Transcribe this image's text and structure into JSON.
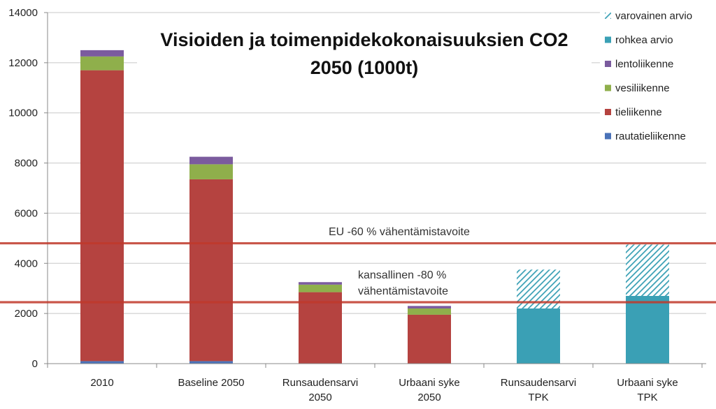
{
  "chart_data": {
    "type": "bar",
    "stacked": true,
    "title_lines": [
      "Visioiden ja toimenpidekokonaisuuksien CO2",
      "2050 (1000t)"
    ],
    "categories": [
      [
        "2010"
      ],
      [
        "Baseline 2050"
      ],
      [
        "Runsaudensarvi",
        "2050"
      ],
      [
        "Urbaani syke",
        "2050"
      ],
      [
        "Runsaudensarvi",
        "TPK"
      ],
      [
        "Urbaani syke",
        "TPK"
      ]
    ],
    "ylim": [
      0,
      14000
    ],
    "yticks": [
      0,
      2000,
      4000,
      6000,
      8000,
      10000,
      12000,
      14000
    ],
    "ytick_labels": [
      "0",
      "2000",
      "4000",
      "6000",
      "8000",
      "10000",
      "12000",
      "14000"
    ],
    "grid": true,
    "legend_position": "top-right",
    "series": [
      {
        "name": "rautatieliikenne",
        "color": "#4a72b8",
        "pattern": false,
        "values": [
          100,
          100,
          0,
          0,
          0,
          0
        ]
      },
      {
        "name": "tieliikenne",
        "color": "#b54340",
        "pattern": false,
        "values": [
          11600,
          7250,
          2850,
          1950,
          0,
          0
        ]
      },
      {
        "name": "vesiliikenne",
        "color": "#8faf4b",
        "pattern": false,
        "values": [
          550,
          600,
          300,
          250,
          0,
          0
        ]
      },
      {
        "name": "lentoliikenne",
        "color": "#7b5b9e",
        "pattern": false,
        "values": [
          250,
          300,
          100,
          100,
          0,
          0
        ]
      },
      {
        "name": "rohkea arvio",
        "color": "#3aa0b5",
        "pattern": false,
        "values": [
          0,
          0,
          0,
          0,
          2200,
          2700
        ]
      },
      {
        "name": "varovainen arvio",
        "color": "#3aa0b5",
        "pattern": true,
        "values": [
          0,
          0,
          0,
          0,
          1550,
          2050
        ]
      }
    ],
    "legend_order": [
      "varovainen arvio",
      "rohkea arvio",
      "lentoliikenne",
      "vesiliikenne",
      "tieliikenne",
      "rautatieliikenne"
    ],
    "reference_lines": [
      {
        "value": 4800,
        "color": "#c0392b",
        "label": [
          "EU -60 % vähentämistavoite"
        ]
      },
      {
        "value": 2450,
        "color": "#c0392b",
        "label": [
          "kansallinen -80 %",
          "vähentämistavoite"
        ]
      }
    ]
  }
}
